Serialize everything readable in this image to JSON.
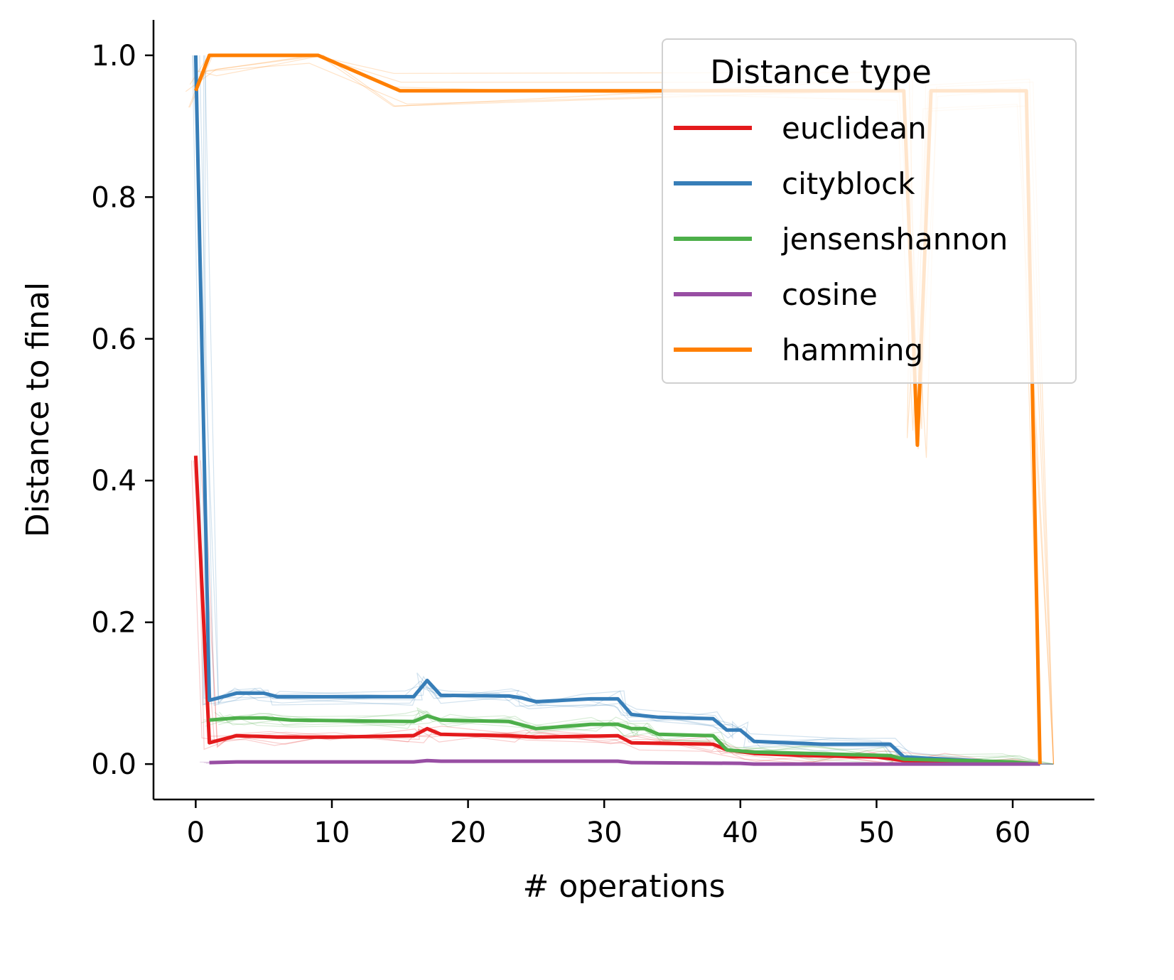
{
  "chart_data": {
    "type": "line",
    "title": "",
    "xlabel": "# operations",
    "ylabel": "Distance to final",
    "xlim": [
      -3.1,
      66
    ],
    "ylim": [
      -0.05,
      1.05
    ],
    "xticks": [
      {
        "value": 0,
        "label": "0"
      },
      {
        "value": 10,
        "label": "10"
      },
      {
        "value": 20,
        "label": "20"
      },
      {
        "value": 30,
        "label": "30"
      },
      {
        "value": 40,
        "label": "40"
      },
      {
        "value": 50,
        "label": "50"
      },
      {
        "value": 60,
        "label": "60"
      }
    ],
    "yticks": [
      {
        "value": 0.0,
        "label": "0.0"
      },
      {
        "value": 0.2,
        "label": "0.2"
      },
      {
        "value": 0.4,
        "label": "0.4"
      },
      {
        "value": 0.6,
        "label": "0.6"
      },
      {
        "value": 0.8,
        "label": "0.8"
      },
      {
        "value": 1.0,
        "label": "1.0"
      }
    ],
    "grid": false,
    "legend": {
      "title": "Distance type",
      "position": "top-right"
    },
    "series": [
      {
        "name": "euclidean",
        "color": "#e41a1c",
        "x": [
          0,
          1,
          3,
          6,
          10,
          16,
          17,
          18,
          23,
          25,
          31,
          32,
          38,
          39,
          41,
          45,
          50,
          52,
          55,
          60,
          62
        ],
        "y": [
          0.435,
          0.03,
          0.04,
          0.038,
          0.038,
          0.04,
          0.05,
          0.042,
          0.04,
          0.038,
          0.04,
          0.03,
          0.028,
          0.02,
          0.015,
          0.012,
          0.01,
          0.005,
          0.004,
          0.002,
          0.0
        ]
      },
      {
        "name": "cityblock",
        "color": "#377eb8",
        "x": [
          0,
          1,
          3,
          5,
          6,
          16,
          17,
          18,
          23,
          24,
          25,
          29,
          31,
          32,
          34,
          38,
          39,
          40,
          41,
          46,
          51,
          52,
          60,
          62
        ],
        "y": [
          1.0,
          0.09,
          0.1,
          0.1,
          0.095,
          0.095,
          0.118,
          0.097,
          0.096,
          0.093,
          0.088,
          0.092,
          0.092,
          0.07,
          0.066,
          0.064,
          0.048,
          0.048,
          0.032,
          0.028,
          0.028,
          0.01,
          0.002,
          0.0
        ]
      },
      {
        "name": "jensenshannon",
        "color": "#4daf4a",
        "x": [
          1,
          3,
          5,
          7,
          16,
          17,
          18,
          23,
          25,
          29,
          31,
          32,
          33,
          34,
          38,
          39,
          41,
          45,
          51,
          52,
          60,
          62
        ],
        "y": [
          0.062,
          0.065,
          0.065,
          0.062,
          0.06,
          0.068,
          0.062,
          0.06,
          0.05,
          0.056,
          0.056,
          0.05,
          0.05,
          0.042,
          0.04,
          0.02,
          0.017,
          0.015,
          0.012,
          0.007,
          0.003,
          0.0
        ]
      },
      {
        "name": "cosine",
        "color": "#984ea3",
        "x": [
          1,
          3,
          16,
          17,
          18,
          31,
          32,
          40,
          41,
          62
        ],
        "y": [
          0.002,
          0.003,
          0.003,
          0.005,
          0.004,
          0.004,
          0.002,
          0.001,
          0.0,
          0.0
        ]
      },
      {
        "name": "hamming",
        "color": "#ff7f00",
        "x": [
          0,
          1,
          9,
          15,
          52,
          53,
          54,
          61,
          62
        ],
        "y": [
          0.95,
          1.0,
          1.0,
          0.95,
          0.95,
          0.45,
          0.95,
          0.95,
          0.0
        ]
      }
    ]
  }
}
